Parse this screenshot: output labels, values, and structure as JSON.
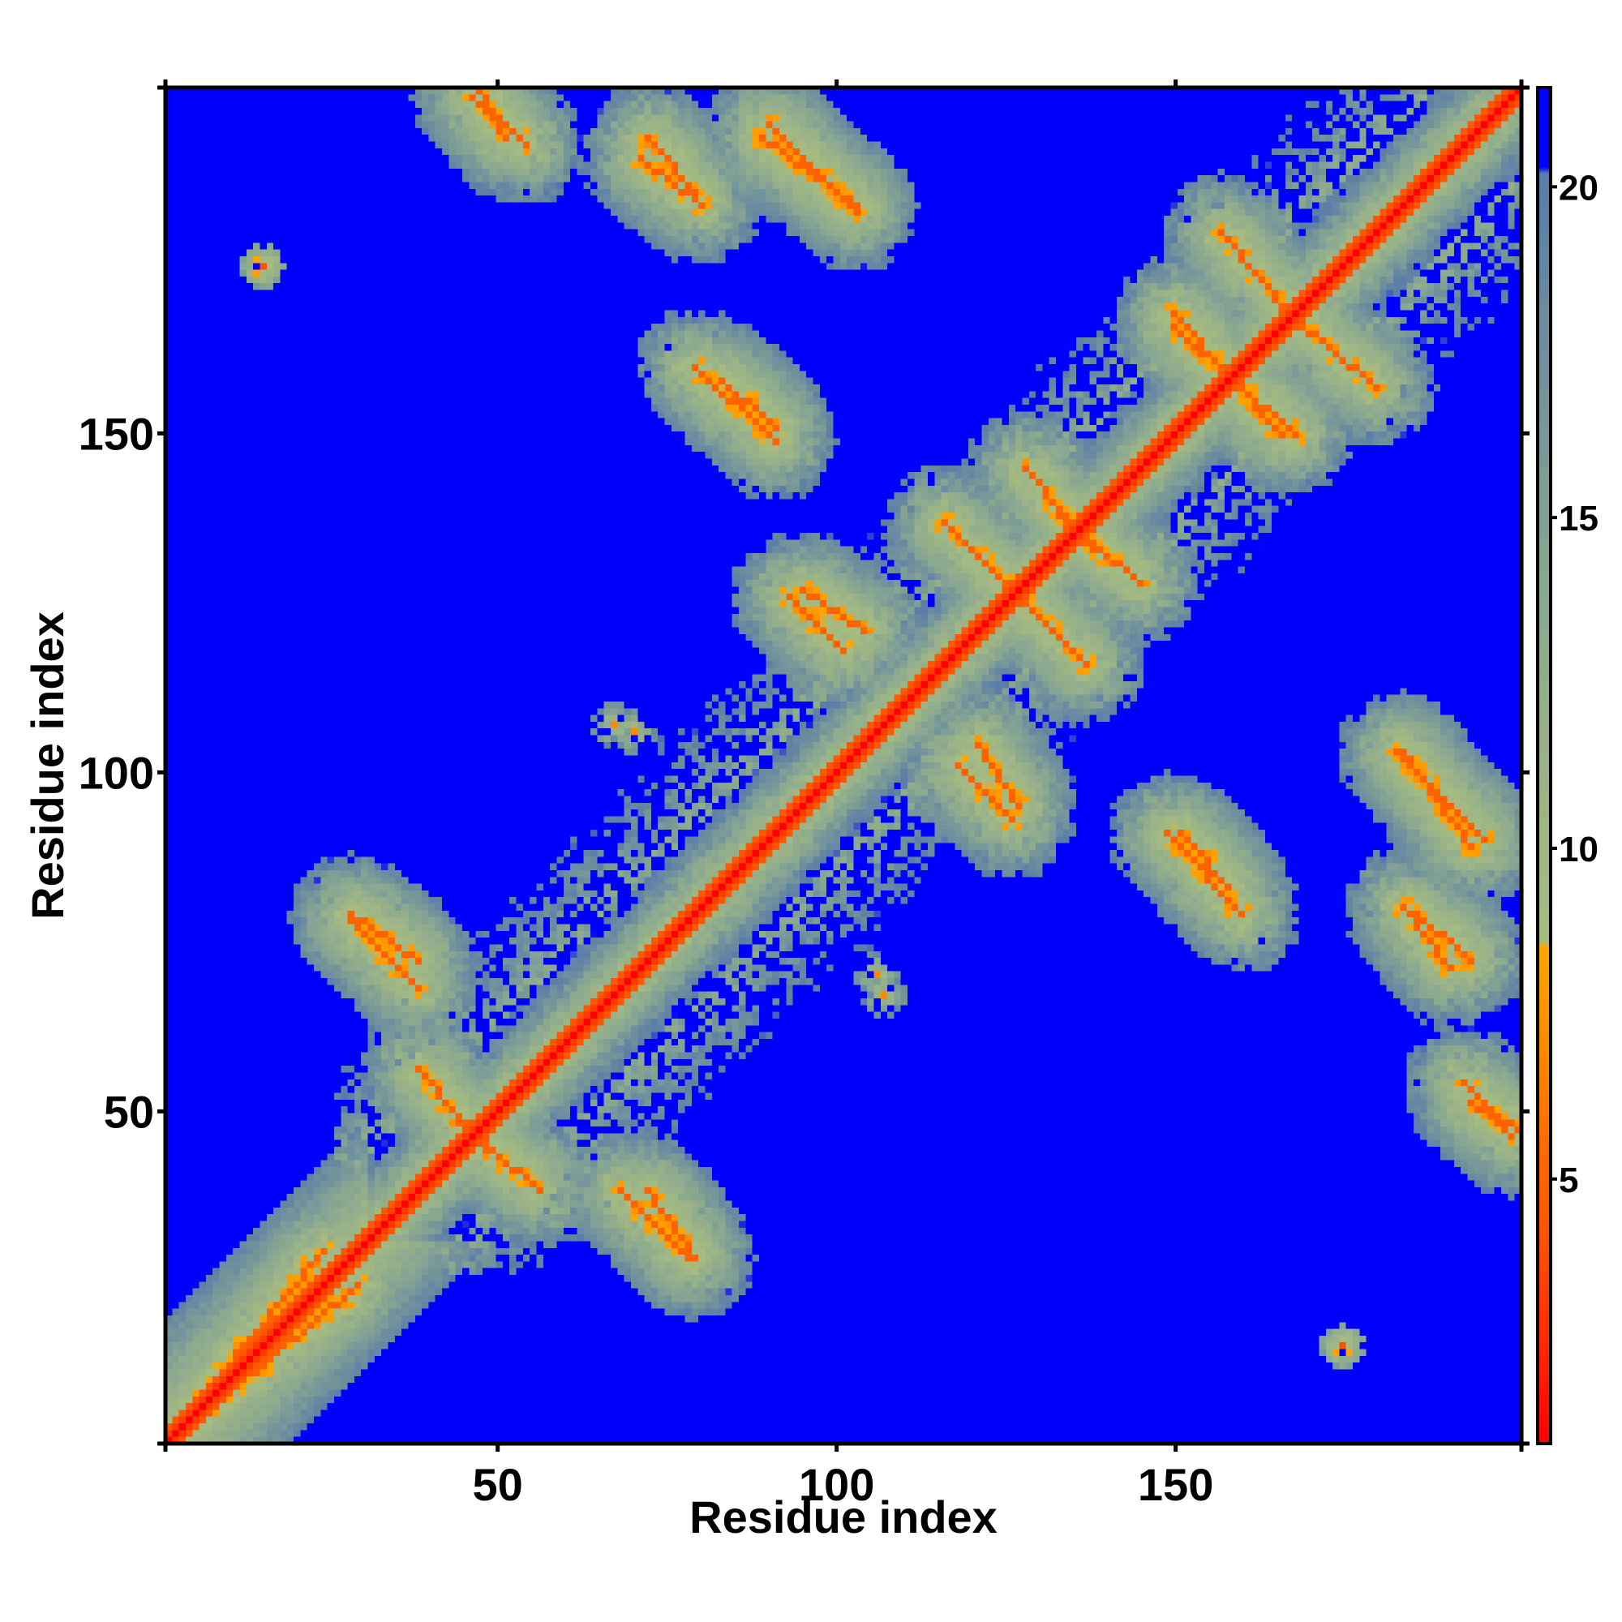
{
  "chart_data": {
    "type": "heatmap",
    "title": "",
    "xlabel": "Residue index",
    "ylabel": "Residue index",
    "xlim": [
      1,
      201
    ],
    "ylim": [
      1,
      201
    ],
    "x_ticks": [
      50,
      100,
      150
    ],
    "x_tick_labels": [
      "50",
      "100",
      "150"
    ],
    "y_ticks": [
      50,
      100,
      150
    ],
    "y_tick_labels": [
      "50",
      "100",
      "150"
    ],
    "grid": false,
    "legend": "none",
    "colorbar": {
      "position": "right",
      "ticks": [
        5,
        10,
        15,
        20
      ],
      "tick_labels": [
        "5",
        "10",
        "15",
        "20"
      ],
      "range": [
        1,
        21.5
      ],
      "stops": [
        {
          "value": 1,
          "color": "#ff0000"
        },
        {
          "value": 4,
          "color": "#ff5000"
        },
        {
          "value": 8.5,
          "color": "#ffa500"
        },
        {
          "value": 8.6,
          "color": "#a8bc80"
        },
        {
          "value": 14,
          "color": "#8aa890"
        },
        {
          "value": 20.2,
          "color": "#5a7ca8"
        },
        {
          "value": 20.3,
          "color": "#0000ff"
        },
        {
          "value": 21.5,
          "color": "#0000ff"
        }
      ]
    },
    "matrix_size": 201,
    "symmetric": true,
    "background_value": 21,
    "diagonal_value": 1,
    "value_encoding": "distance between residue i and residue j; values above 20 shown as background",
    "contact_features": [
      {
        "kind": "antiparallel",
        "from": [
          72,
          194
        ],
        "to": [
          79,
          186
        ],
        "value": 6
      },
      {
        "kind": "antiparallel",
        "from": [
          89,
          194
        ],
        "to": [
          103,
          184
        ],
        "value": 6
      },
      {
        "kind": "antiparallel",
        "from": [
          47,
          201
        ],
        "to": [
          51,
          194
        ],
        "value": 6
      },
      {
        "kind": "antiparallel",
        "from": [
          79,
          160
        ],
        "to": [
          91,
          149
        ],
        "value": 6
      },
      {
        "kind": "antiparallel",
        "from": [
          93,
          126
        ],
        "to": [
          101,
          118
        ],
        "value": 6
      },
      {
        "kind": "antiparallel",
        "from": [
          121,
          104
        ],
        "to": [
          127,
          95
        ],
        "value": 6
      },
      {
        "kind": "antiparallel",
        "from": [
          151,
          91
        ],
        "to": [
          158,
          83
        ],
        "value": 6
      },
      {
        "kind": "antiparallel",
        "from": [
          157,
          180
        ],
        "to": [
          167,
          168
        ],
        "value": 6
      },
      {
        "kind": "antiparallel",
        "from": [
          150,
          168
        ],
        "to": [
          166,
          150
        ],
        "value": 6
      },
      {
        "kind": "antiparallel",
        "from": [
          128,
          145
        ],
        "to": [
          138,
          133
        ],
        "value": 6
      },
      {
        "kind": "antiparallel",
        "from": [
          116,
          137
        ],
        "to": [
          128,
          125
        ],
        "value": 6
      },
      {
        "kind": "antiparallel",
        "from": [
          183,
          103
        ],
        "to": [
          196,
          90
        ],
        "value": 6
      },
      {
        "kind": "antiparallel",
        "from": [
          184,
          80
        ],
        "to": [
          191,
          71
        ],
        "value": 6
      },
      {
        "kind": "antiparallel",
        "from": [
          193,
          54
        ],
        "to": [
          200,
          46
        ],
        "value": 6
      },
      {
        "kind": "antiparallel",
        "from": [
          28,
          79
        ],
        "to": [
          38,
          72
        ],
        "value": 6
      },
      {
        "kind": "antiparallel",
        "from": [
          38,
          56
        ],
        "to": [
          48,
          44
        ],
        "value": 6
      },
      {
        "kind": "antiparallel",
        "from": [
          68,
          38
        ],
        "to": [
          78,
          28
        ],
        "value": 6
      },
      {
        "kind": "parallel",
        "from": [
          3,
          4
        ],
        "to": [
          24,
          29
        ],
        "value": 6
      },
      {
        "kind": "point",
        "at": [
          108,
          107
        ],
        "value": 6
      },
      {
        "kind": "point",
        "at": [
          106,
          70
        ],
        "value": 7
      },
      {
        "kind": "point",
        "at": [
          67,
          107
        ],
        "value": 7
      },
      {
        "kind": "point",
        "at": [
          175,
          15
        ],
        "value": 4
      },
      {
        "kind": "point",
        "at": [
          15,
          175
        ],
        "value": 4
      }
    ]
  }
}
